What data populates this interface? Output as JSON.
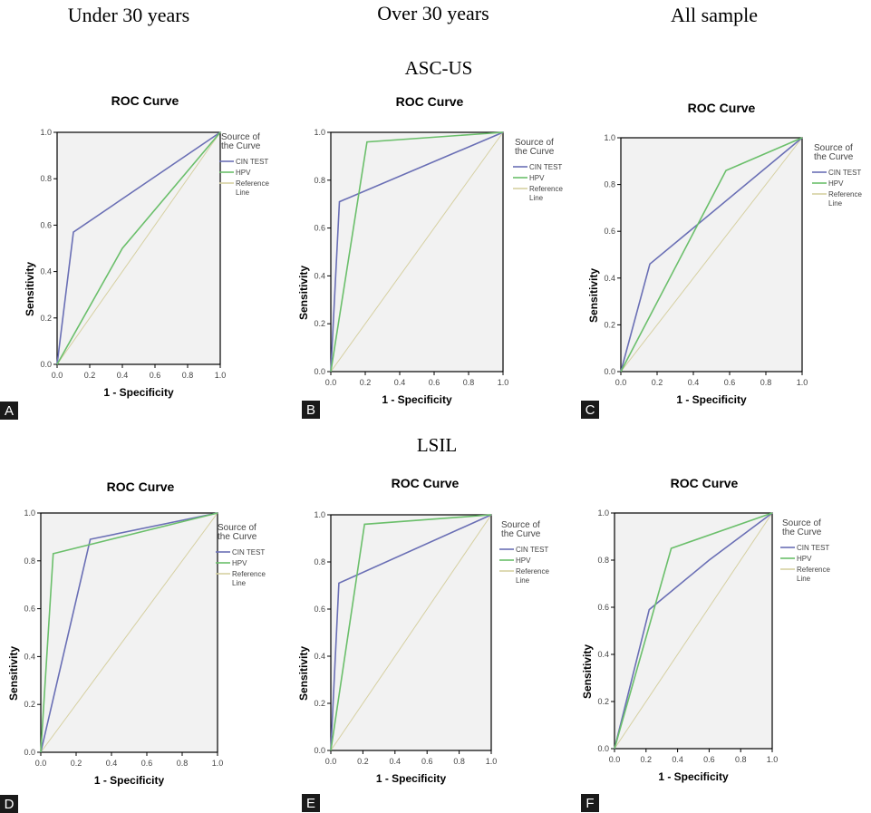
{
  "headers": {
    "columns": [
      "Under 30 years",
      "Over 30 years",
      "All sample"
    ],
    "rows": [
      "ASC-US",
      "LSIL"
    ]
  },
  "legend": {
    "title_line1": "Source of",
    "title_line2": "the Curve",
    "entries": [
      "CIN TEST",
      "HPV",
      "Reference",
      "Line"
    ]
  },
  "colors": {
    "cin": "#6a6fb5",
    "hpv": "#6bbf6b",
    "reference": "#d6d0a2",
    "plot_bg": "#f2f2f2"
  },
  "chart_data": [
    {
      "panel": "A",
      "type": "line",
      "title": "ROC Curve",
      "xlabel": "1 - Specificity",
      "ylabel": "Sensitivity",
      "xlim": [
        0,
        1
      ],
      "ylim": [
        0,
        1
      ],
      "xticks": [
        "0.0",
        "0.2",
        "0.4",
        "0.6",
        "0.8",
        "1.0"
      ],
      "yticks": [
        "0.0",
        "0.2",
        "0.4",
        "0.6",
        "0.8",
        "1.0"
      ],
      "series": [
        {
          "name": "CIN TEST",
          "x": [
            0,
            0.1,
            1
          ],
          "y": [
            0,
            0.57,
            1
          ]
        },
        {
          "name": "HPV",
          "x": [
            0,
            0.4,
            1
          ],
          "y": [
            0,
            0.5,
            1
          ]
        },
        {
          "name": "Reference Line",
          "x": [
            0,
            1
          ],
          "y": [
            0,
            1
          ]
        }
      ]
    },
    {
      "panel": "B",
      "type": "line",
      "title": "ROC Curve",
      "xlabel": "1 - Specificity",
      "ylabel": "Sensitivity",
      "xlim": [
        0,
        1
      ],
      "ylim": [
        0,
        1
      ],
      "xticks": [
        "0.0",
        "0.2",
        "0.4",
        "0.6",
        "0.8",
        "1.0"
      ],
      "yticks": [
        "0.0",
        "0.2",
        "0.4",
        "0.6",
        "0.8",
        "1.0"
      ],
      "series": [
        {
          "name": "CIN TEST",
          "x": [
            0,
            0.05,
            1
          ],
          "y": [
            0,
            0.71,
            1
          ]
        },
        {
          "name": "HPV",
          "x": [
            0,
            0.21,
            1
          ],
          "y": [
            0,
            0.96,
            1
          ]
        },
        {
          "name": "Reference Line",
          "x": [
            0,
            1
          ],
          "y": [
            0,
            1
          ]
        }
      ]
    },
    {
      "panel": "C",
      "type": "line",
      "title": "ROC Curve",
      "xlabel": "1 - Specificity",
      "ylabel": "Sensitivity",
      "xlim": [
        0,
        1
      ],
      "ylim": [
        0,
        1
      ],
      "xticks": [
        "0.0",
        "0.2",
        "0.4",
        "0.6",
        "0.8",
        "1.0"
      ],
      "yticks": [
        "0.0",
        "0.2",
        "0.4",
        "0.6",
        "0.8",
        "1.0"
      ],
      "series": [
        {
          "name": "CIN TEST",
          "x": [
            0,
            0.16,
            1
          ],
          "y": [
            0,
            0.46,
            1
          ]
        },
        {
          "name": "HPV",
          "x": [
            0,
            0.58,
            1
          ],
          "y": [
            0,
            0.86,
            1
          ]
        },
        {
          "name": "Reference Line",
          "x": [
            0,
            1
          ],
          "y": [
            0,
            1
          ]
        }
      ]
    },
    {
      "panel": "D",
      "type": "line",
      "title": "ROC Curve",
      "xlabel": "1 - Specificity",
      "ylabel": "Sensitivity",
      "xlim": [
        0,
        1
      ],
      "ylim": [
        0,
        1
      ],
      "xticks": [
        "0.0",
        "0.2",
        "0.4",
        "0.6",
        "0.8",
        "1.0"
      ],
      "yticks": [
        "0.0",
        "0.2",
        "0.4",
        "0.6",
        "0.8",
        "1.0"
      ],
      "series": [
        {
          "name": "CIN TEST",
          "x": [
            0,
            0.28,
            1
          ],
          "y": [
            0,
            0.89,
            1
          ]
        },
        {
          "name": "HPV",
          "x": [
            0,
            0.07,
            1
          ],
          "y": [
            0,
            0.83,
            1
          ]
        },
        {
          "name": "Reference Line",
          "x": [
            0,
            1
          ],
          "y": [
            0,
            1
          ]
        }
      ]
    },
    {
      "panel": "E",
      "type": "line",
      "title": "ROC Curve",
      "xlabel": "1 - Specificity",
      "ylabel": "Sensitivity",
      "xlim": [
        0,
        1
      ],
      "ylim": [
        0,
        1
      ],
      "xticks": [
        "0.0",
        "0.2",
        "0.4",
        "0.6",
        "0.8",
        "1.0"
      ],
      "yticks": [
        "0.0",
        "0.2",
        "0.4",
        "0.6",
        "0.8",
        "1.0"
      ],
      "series": [
        {
          "name": "CIN TEST",
          "x": [
            0,
            0.05,
            1
          ],
          "y": [
            0,
            0.71,
            1
          ]
        },
        {
          "name": "HPV",
          "x": [
            0,
            0.21,
            1
          ],
          "y": [
            0,
            0.96,
            1
          ]
        },
        {
          "name": "Reference Line",
          "x": [
            0,
            1
          ],
          "y": [
            0,
            1
          ]
        }
      ]
    },
    {
      "panel": "F",
      "type": "line",
      "title": "ROC Curve",
      "xlabel": "1 - Specificity",
      "ylabel": "Sensitivity",
      "xlim": [
        0,
        1
      ],
      "ylim": [
        0,
        1
      ],
      "xticks": [
        "0.0",
        "0.2",
        "0.4",
        "0.6",
        "0.8",
        "1.0"
      ],
      "yticks": [
        "0.0",
        "0.2",
        "0.4",
        "0.6",
        "0.8",
        "1.0"
      ],
      "series": [
        {
          "name": "CIN TEST",
          "x": [
            0,
            0.22,
            0.6,
            1
          ],
          "y": [
            0,
            0.59,
            0.8,
            1
          ]
        },
        {
          "name": "HPV",
          "x": [
            0,
            0.36,
            1
          ],
          "y": [
            0,
            0.85,
            1
          ]
        },
        {
          "name": "Reference Line",
          "x": [
            0,
            1
          ],
          "y": [
            0,
            1
          ]
        }
      ]
    }
  ]
}
